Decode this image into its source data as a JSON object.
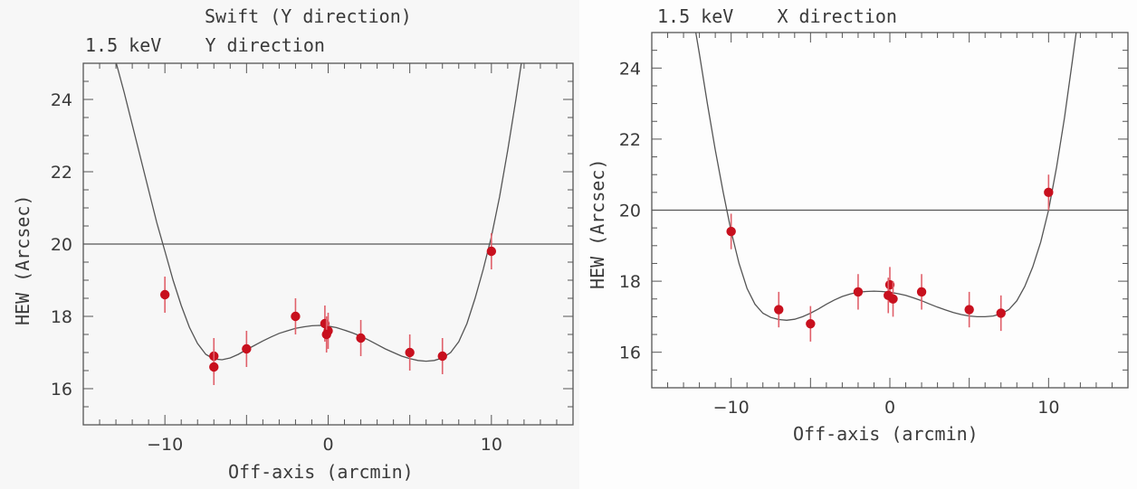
{
  "chart_data": [
    {
      "type": "scatter",
      "title": "Swift (Y direction)",
      "subtitle": "1.5 keV    Y direction",
      "xlabel": "Off-axis (arcmin)",
      "ylabel": "HEW (Arcsec)",
      "xlim": [
        -15,
        15
      ],
      "ylim": [
        15,
        25
      ],
      "xticks": [
        -10,
        0,
        10
      ],
      "yticks": [
        16,
        18,
        20,
        22,
        24
      ],
      "reference_line": 20,
      "points": [
        {
          "x": -10,
          "y": 18.6,
          "err": 0.5
        },
        {
          "x": -7,
          "y": 16.9,
          "err": 0.5
        },
        {
          "x": -7,
          "y": 16.6,
          "err": 0.5
        },
        {
          "x": -5,
          "y": 17.1,
          "err": 0.5
        },
        {
          "x": -2,
          "y": 18.0,
          "err": 0.5
        },
        {
          "x": -0.2,
          "y": 17.8,
          "err": 0.5
        },
        {
          "x": 0,
          "y": 17.6,
          "err": 0.5
        },
        {
          "x": -0.1,
          "y": 17.5,
          "err": 0.5
        },
        {
          "x": 2,
          "y": 17.4,
          "err": 0.5
        },
        {
          "x": 5,
          "y": 17.0,
          "err": 0.5
        },
        {
          "x": 7,
          "y": 16.9,
          "err": 0.5
        },
        {
          "x": 10,
          "y": 19.8,
          "err": 0.5
        }
      ],
      "fit_curve": {
        "x": [
          -13.1,
          -12.5,
          -12,
          -11.5,
          -11,
          -10.5,
          -10,
          -9.5,
          -9,
          -8.5,
          -8,
          -7.5,
          -7,
          -6.5,
          -6,
          -5.5,
          -5,
          -4.5,
          -4,
          -3.5,
          -3,
          -2.5,
          -2,
          -1.5,
          -1,
          -0.5,
          0,
          0.5,
          1,
          1.5,
          2,
          2.5,
          3,
          3.5,
          4,
          4.5,
          5,
          5.5,
          6,
          6.5,
          7,
          7.5,
          8,
          8.5,
          9,
          9.5,
          10,
          10.5,
          11,
          11.5,
          11.9
        ],
        "y": [
          25.2,
          24.2,
          23.3,
          22.4,
          21.5,
          20.6,
          19.8,
          19.0,
          18.3,
          17.7,
          17.25,
          16.95,
          16.82,
          16.8,
          16.85,
          16.95,
          17.08,
          17.2,
          17.32,
          17.43,
          17.53,
          17.6,
          17.67,
          17.71,
          17.74,
          17.75,
          17.73,
          17.69,
          17.62,
          17.54,
          17.45,
          17.34,
          17.22,
          17.1,
          17.0,
          16.9,
          16.83,
          16.78,
          16.76,
          16.78,
          16.85,
          17.0,
          17.3,
          17.8,
          18.5,
          19.3,
          20.2,
          21.3,
          22.6,
          24.0,
          25.2
        ]
      }
    },
    {
      "type": "scatter",
      "title": "",
      "subtitle": "1.5 keV    X direction",
      "xlabel": "Off-axis (arcmin)",
      "ylabel": "HEW (Arcsec)",
      "xlim": [
        -15,
        15
      ],
      "ylim": [
        15,
        25
      ],
      "xticks": [
        -10,
        0,
        10
      ],
      "yticks": [
        16,
        18,
        20,
        22,
        24
      ],
      "reference_line": 20,
      "points": [
        {
          "x": -10,
          "y": 19.4,
          "err": 0.5
        },
        {
          "x": -7,
          "y": 17.2,
          "err": 0.5
        },
        {
          "x": -5,
          "y": 16.8,
          "err": 0.5
        },
        {
          "x": -2,
          "y": 17.7,
          "err": 0.5
        },
        {
          "x": 0,
          "y": 17.9,
          "err": 0.5
        },
        {
          "x": -0.1,
          "y": 17.6,
          "err": 0.5
        },
        {
          "x": 0.2,
          "y": 17.5,
          "err": 0.5
        },
        {
          "x": 2,
          "y": 17.7,
          "err": 0.5
        },
        {
          "x": 5,
          "y": 17.2,
          "err": 0.5
        },
        {
          "x": 7,
          "y": 17.1,
          "err": 0.5
        },
        {
          "x": 10,
          "y": 20.5,
          "err": 0.5
        }
      ],
      "fit_curve": {
        "x": [
          -12.3,
          -12,
          -11.5,
          -11,
          -10.5,
          -10,
          -9.5,
          -9,
          -8.5,
          -8,
          -7.5,
          -7,
          -6.5,
          -6,
          -5.5,
          -5,
          -4.5,
          -4,
          -3.5,
          -3,
          -2.5,
          -2,
          -1.5,
          -1,
          -0.5,
          0,
          0.5,
          1,
          1.5,
          2,
          2.5,
          3,
          3.5,
          4,
          4.5,
          5,
          5.5,
          6,
          6.5,
          7,
          7.5,
          8,
          8.5,
          9,
          9.5,
          10,
          10.5,
          11,
          11.5,
          11.8
        ],
        "y": [
          25.2,
          24.4,
          23.0,
          21.7,
          20.5,
          19.4,
          18.5,
          17.8,
          17.35,
          17.1,
          16.98,
          16.92,
          16.9,
          16.93,
          17.0,
          17.1,
          17.22,
          17.35,
          17.47,
          17.57,
          17.64,
          17.69,
          17.71,
          17.72,
          17.71,
          17.69,
          17.65,
          17.6,
          17.53,
          17.45,
          17.36,
          17.27,
          17.19,
          17.12,
          17.06,
          17.02,
          17.0,
          17.0,
          17.02,
          17.08,
          17.2,
          17.45,
          17.85,
          18.4,
          19.1,
          20.0,
          21.2,
          22.6,
          24.2,
          25.2
        ]
      }
    }
  ]
}
